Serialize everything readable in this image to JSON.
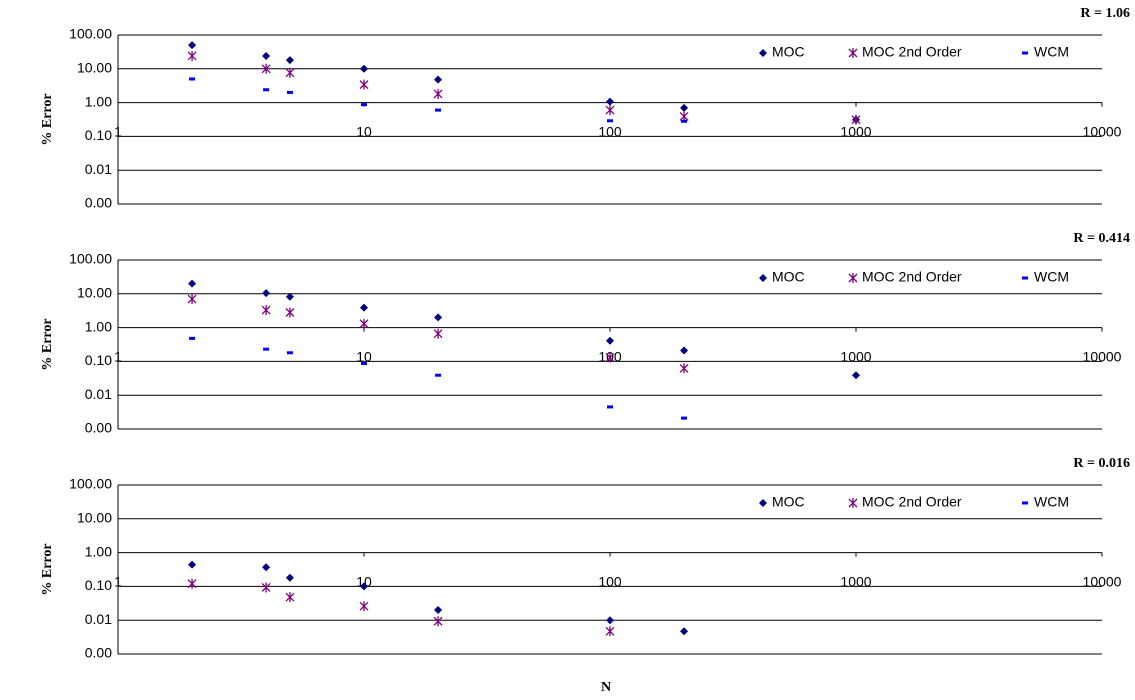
{
  "chart_data": [
    {
      "type": "scatter",
      "title": "R = 1.06",
      "ylabel": "% Error",
      "x": [
        2,
        4,
        5,
        10,
        20,
        100,
        200,
        1000
      ],
      "series": [
        {
          "name": "MOC",
          "color": "#000080",
          "marker": "diamond",
          "values": [
            50,
            24,
            18,
            10,
            4.8,
            1.07,
            0.7,
            0.31
          ]
        },
        {
          "name": "MOC 2nd Order",
          "color": "#800080",
          "marker": "asterisk",
          "values": [
            24,
            10,
            7.6,
            3.4,
            1.8,
            0.6,
            0.39,
            0.31
          ]
        },
        {
          "name": "WCM",
          "color": "#0000ff",
          "marker": "dash",
          "values": [
            5,
            2.4,
            2,
            0.87,
            0.6,
            0.29,
            0.28,
            null
          ]
        }
      ],
      "xlim": [
        1,
        10000
      ],
      "xticks": [
        1,
        10,
        100,
        1000,
        10000
      ],
      "ylim": [
        0.001,
        100
      ],
      "yticks": [
        {
          "value": 100,
          "label": "100.00"
        },
        {
          "value": 10,
          "label": "10.00"
        },
        {
          "value": 1,
          "label": "1.00"
        },
        {
          "value": 0.1,
          "label": "0.10"
        },
        {
          "value": 0.01,
          "label": "0.01"
        },
        {
          "value": 0.001,
          "label": "0.00"
        }
      ],
      "log_x": true,
      "log_y": true,
      "grid": true,
      "legend": "top-right"
    },
    {
      "type": "scatter",
      "title": "R = 0.414",
      "ylabel": "% Error",
      "x": [
        2,
        4,
        5,
        10,
        20,
        100,
        200,
        1000
      ],
      "series": [
        {
          "name": "MOC",
          "color": "#000080",
          "marker": "diamond",
          "values": [
            20,
            10.5,
            8.2,
            3.9,
            2,
            0.41,
            0.21,
            0.039
          ]
        },
        {
          "name": "MOC 2nd Order",
          "color": "#800080",
          "marker": "asterisk",
          "values": [
            7,
            3.3,
            2.8,
            1.3,
            0.66,
            0.13,
            0.062,
            null
          ]
        },
        {
          "name": "WCM",
          "color": "#0000ff",
          "marker": "dash",
          "values": [
            0.48,
            0.23,
            0.18,
            0.087,
            0.039,
            0.0045,
            0.0021,
            null
          ]
        }
      ],
      "xlim": [
        1,
        10000
      ],
      "xticks": [
        1,
        10,
        100,
        1000,
        10000
      ],
      "ylim": [
        0.001,
        100
      ],
      "yticks": [
        {
          "value": 100,
          "label": "100.00"
        },
        {
          "value": 10,
          "label": "10.00"
        },
        {
          "value": 1,
          "label": "1.00"
        },
        {
          "value": 0.1,
          "label": "0.10"
        },
        {
          "value": 0.01,
          "label": "0.01"
        },
        {
          "value": 0.001,
          "label": "0.00"
        }
      ],
      "log_x": true,
      "log_y": true,
      "grid": true,
      "legend": "top-right"
    },
    {
      "type": "scatter",
      "title": "R = 0.016",
      "ylabel": "% Error",
      "xlabel": "N",
      "x": [
        2,
        4,
        5,
        10,
        20,
        100,
        200,
        1000
      ],
      "series": [
        {
          "name": "MOC",
          "color": "#000080",
          "marker": "diamond",
          "values": [
            0.44,
            0.37,
            0.18,
            0.1,
            0.02,
            0.01,
            0.0047,
            null
          ]
        },
        {
          "name": "MOC 2nd Order",
          "color": "#800080",
          "marker": "asterisk",
          "values": [
            0.12,
            0.093,
            0.048,
            0.026,
            0.0093,
            0.0047,
            null,
            null
          ]
        },
        {
          "name": "WCM",
          "color": "#0000ff",
          "marker": "dash",
          "values": [
            null,
            null,
            null,
            null,
            null,
            null,
            null,
            null
          ]
        }
      ],
      "xlim": [
        1,
        10000
      ],
      "xticks": [
        1,
        10,
        100,
        1000,
        10000
      ],
      "ylim": [
        0.001,
        100
      ],
      "yticks": [
        {
          "value": 100,
          "label": "100.00"
        },
        {
          "value": 10,
          "label": "10.00"
        },
        {
          "value": 1,
          "label": "1.00"
        },
        {
          "value": 0.1,
          "label": "0.10"
        },
        {
          "value": 0.01,
          "label": "0.01"
        },
        {
          "value": 0.001,
          "label": "0.00"
        }
      ],
      "log_x": true,
      "log_y": true,
      "grid": true,
      "legend": "top-right"
    }
  ]
}
